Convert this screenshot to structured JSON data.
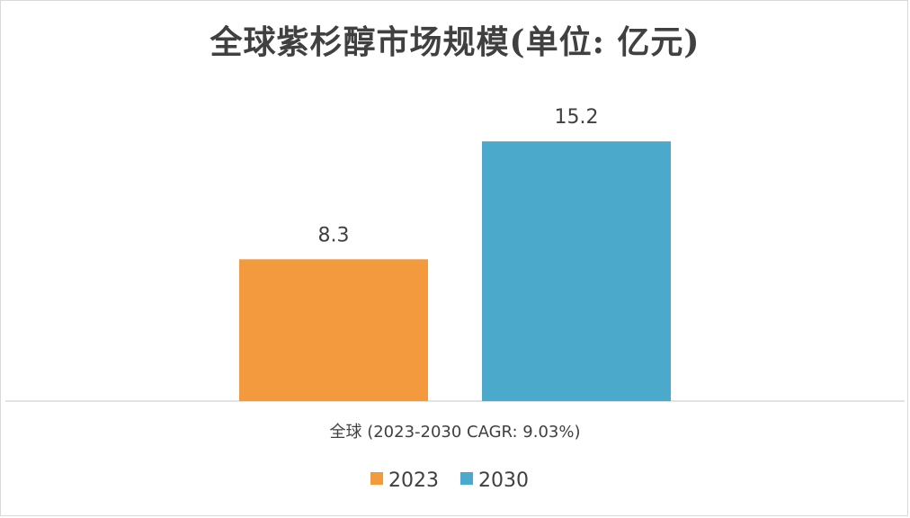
{
  "chart_data": {
    "type": "bar",
    "title": "全球紫杉醇市场规模(单位: 亿元)",
    "categories": [
      "全球 (2023-2030 CAGR: 9.03%)"
    ],
    "series": [
      {
        "name": "2023",
        "values": [
          8.3
        ],
        "color": "#F39A3E"
      },
      {
        "name": "2030",
        "values": [
          15.2
        ],
        "color": "#4BAACB"
      }
    ],
    "ylim": [
      0,
      18
    ],
    "grid": false,
    "legend": "bottom"
  }
}
